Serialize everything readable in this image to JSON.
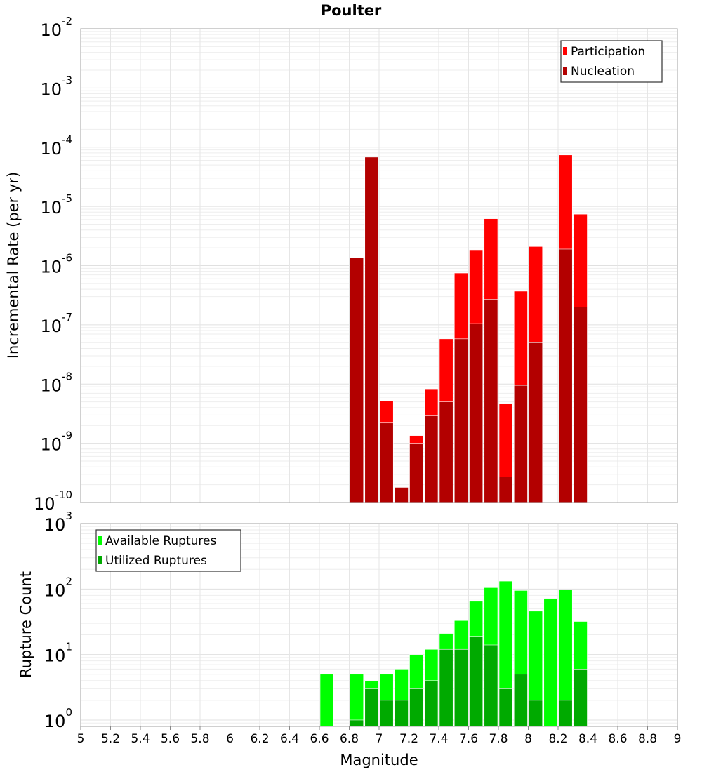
{
  "chart_data": [
    {
      "type": "bar",
      "title": "Poulter",
      "xlabel": "Magnitude",
      "ylabel": "Incremental Rate (per yr)",
      "yscale": "log",
      "ylim": [
        1e-10,
        0.01
      ],
      "xlim": [
        5,
        9
      ],
      "bin_width": 0.1,
      "grid": true,
      "legend_position": "top-right",
      "x": [
        6.85,
        6.95,
        7.05,
        7.15,
        7.25,
        7.35,
        7.45,
        7.55,
        7.65,
        7.75,
        7.85,
        7.95,
        8.05,
        8.25,
        8.35
      ],
      "series": [
        {
          "name": "Participation",
          "color": "#ff0000",
          "values": [
            1.35e-06,
            6.8e-05,
            5.2e-09,
            1.8e-10,
            1.35e-09,
            8.3e-09,
            5.8e-08,
            7.5e-07,
            1.85e-06,
            6.2e-06,
            4.7e-09,
            3.7e-07,
            2.1e-06,
            7.4e-05,
            7.4e-06
          ]
        },
        {
          "name": "Nucleation",
          "color": "#b30000",
          "values": [
            1.35e-06,
            6.8e-05,
            2.2e-09,
            1.8e-10,
            1e-09,
            2.9e-09,
            5e-09,
            5.8e-08,
            1.05e-07,
            2.7e-07,
            2.7e-10,
            9.5e-09,
            5e-08,
            1.9e-06,
            2e-07
          ]
        }
      ],
      "ytick_exponents": [
        "-2",
        "-3",
        "-4",
        "-5",
        "-6",
        "-7",
        "-8",
        "-9",
        "-10"
      ]
    },
    {
      "type": "bar",
      "xlabel": "Magnitude",
      "ylabel": "Rupture Count",
      "yscale": "log",
      "ylim": [
        0.8,
        1000
      ],
      "xlim": [
        5,
        9
      ],
      "bin_width": 0.1,
      "grid": true,
      "legend_position": "top-left",
      "x": [
        6.65,
        6.85,
        6.95,
        7.05,
        7.15,
        7.25,
        7.35,
        7.45,
        7.55,
        7.65,
        7.75,
        7.85,
        7.95,
        8.05,
        8.15,
        8.25,
        8.35
      ],
      "series": [
        {
          "name": "Available Ruptures",
          "color": "#00ff00",
          "values": [
            5,
            5,
            4,
            5,
            6,
            10,
            12,
            21,
            33,
            65,
            105,
            132,
            95,
            46,
            72,
            97,
            32
          ]
        },
        {
          "name": "Utilized Ruptures",
          "color": "#00aa00",
          "values": [
            0,
            1,
            3,
            2,
            2,
            3,
            4,
            12,
            12,
            19,
            14,
            3,
            5,
            2,
            0,
            2,
            6
          ]
        }
      ],
      "ytick_exponents": [
        "3",
        "2",
        "1",
        "0"
      ],
      "xticks": [
        "5",
        "5.2",
        "5.4",
        "5.6",
        "5.8",
        "6",
        "6.2",
        "6.4",
        "6.6",
        "6.8",
        "7",
        "7.2",
        "7.4",
        "7.6",
        "7.8",
        "8",
        "8.2",
        "8.4",
        "8.6",
        "8.8",
        "9"
      ]
    }
  ],
  "ytick_base": "10"
}
